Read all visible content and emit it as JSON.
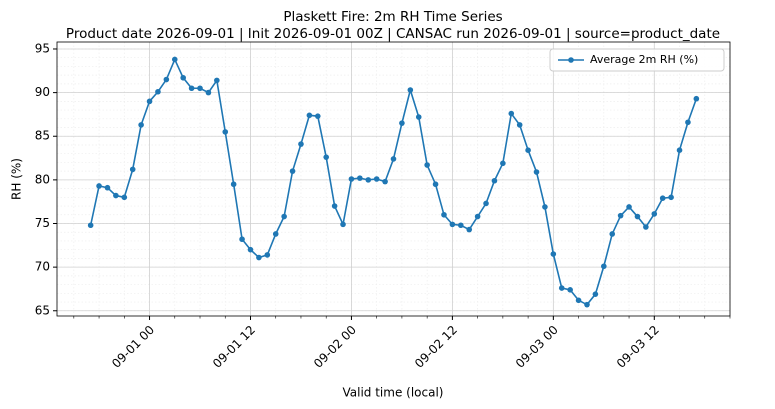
{
  "chart_data": {
    "type": "line",
    "title": "Plaskett Fire: 2m RH Time Series",
    "subtitle": "Product date 2026-09-01 | Init 2026-09-01 00Z | CANSAC run 2026-09-01 | source=product_date",
    "x_label": "Valid time (local)",
    "y_label": "RH (%)",
    "x": [
      "08-31 17",
      "08-31 18",
      "08-31 19",
      "08-31 20",
      "08-31 21",
      "08-31 22",
      "08-31 23",
      "09-01 00",
      "09-01 01",
      "09-01 02",
      "09-01 03",
      "09-01 04",
      "09-01 05",
      "09-01 06",
      "09-01 07",
      "09-01 08",
      "09-01 09",
      "09-01 10",
      "09-01 11",
      "09-01 12",
      "09-01 13",
      "09-01 14",
      "09-01 15",
      "09-01 16",
      "09-01 17",
      "09-01 18",
      "09-01 19",
      "09-01 20",
      "09-01 21",
      "09-01 22",
      "09-01 23",
      "09-02 00",
      "09-02 01",
      "09-02 02",
      "09-02 03",
      "09-02 04",
      "09-02 05",
      "09-02 06",
      "09-02 07",
      "09-02 08",
      "09-02 09",
      "09-02 10",
      "09-02 11",
      "09-02 12",
      "09-02 13",
      "09-02 14",
      "09-02 15",
      "09-02 16",
      "09-02 17",
      "09-02 18",
      "09-02 19",
      "09-02 20",
      "09-02 21",
      "09-02 22",
      "09-02 23",
      "09-03 00",
      "09-03 01",
      "09-03 02",
      "09-03 03",
      "09-03 04",
      "09-03 05",
      "09-03 06",
      "09-03 07",
      "09-03 08",
      "09-03 09",
      "09-03 10",
      "09-03 11",
      "09-03 12",
      "09-03 13",
      "09-03 14",
      "09-03 15",
      "09-03 16",
      "09-03 17"
    ],
    "series": [
      {
        "name": "Average 2m RH (%)",
        "color": "#1f77b4",
        "values": [
          74.8,
          79.3,
          79.1,
          78.2,
          78.0,
          81.2,
          86.3,
          89.0,
          90.1,
          91.5,
          93.8,
          91.7,
          90.5,
          90.5,
          90.0,
          91.4,
          85.5,
          79.5,
          73.2,
          72.0,
          71.1,
          71.4,
          73.8,
          75.8,
          81.0,
          84.1,
          87.4,
          87.3,
          82.6,
          77.0,
          74.9,
          80.1,
          80.2,
          80.0,
          80.1,
          79.8,
          82.4,
          86.5,
          90.3,
          87.2,
          81.7,
          79.5,
          76.0,
          74.9,
          74.8,
          74.3,
          75.8,
          77.3,
          79.9,
          81.9,
          87.6,
          86.3,
          83.4,
          80.9,
          76.9,
          71.5,
          67.6,
          67.4,
          66.2,
          65.7,
          66.9,
          70.1,
          73.8,
          75.9,
          76.9,
          75.8,
          74.6,
          76.1,
          77.9,
          78.0,
          83.4,
          86.6,
          89.3
        ]
      }
    ],
    "xlim": [
      "08-31 13",
      "09-03 21"
    ],
    "xticks": [
      "09-01 00",
      "09-01 12",
      "09-02 00",
      "09-02 12",
      "09-03 00",
      "09-03 12"
    ],
    "ylim": [
      64.4,
      95.8
    ],
    "yticks": [
      65,
      70,
      75,
      80,
      85,
      90,
      95
    ],
    "grid": true,
    "legend": "upper right"
  }
}
